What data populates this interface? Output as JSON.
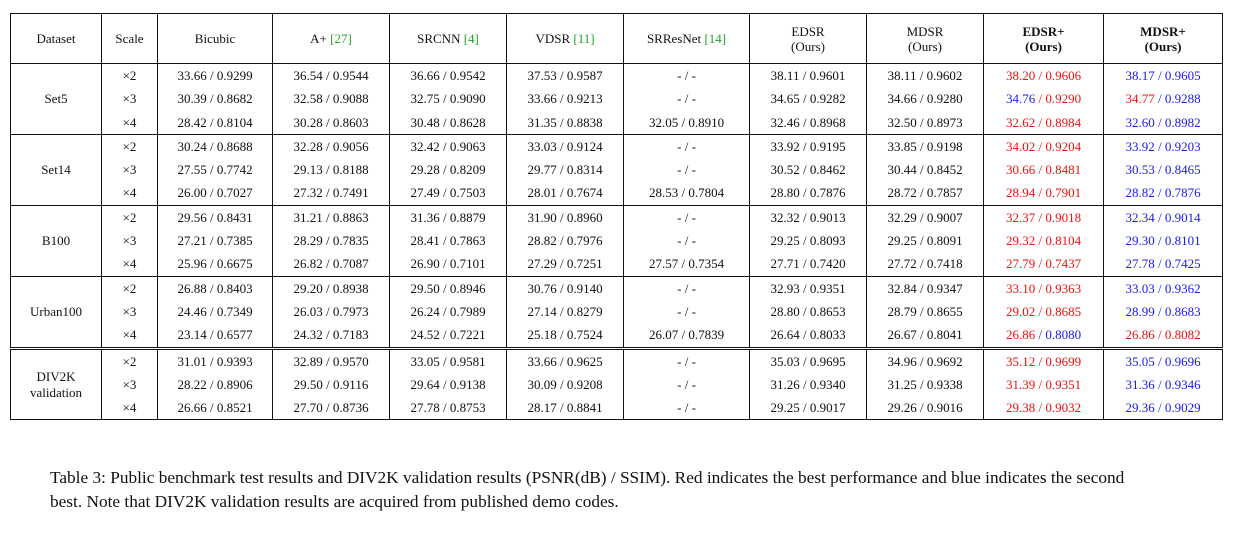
{
  "columns": [
    {
      "label": "Dataset",
      "cite": "",
      "sub": "",
      "bold": false
    },
    {
      "label": "Scale",
      "cite": "",
      "sub": "",
      "bold": false
    },
    {
      "label": "Bicubic",
      "cite": "",
      "sub": "",
      "bold": false
    },
    {
      "label": "A+ ",
      "cite": "[27]",
      "sub": "",
      "bold": false
    },
    {
      "label": "SRCNN ",
      "cite": "[4]",
      "sub": "",
      "bold": false
    },
    {
      "label": "VDSR ",
      "cite": "[11]",
      "sub": "",
      "bold": false
    },
    {
      "label": "SRResNet ",
      "cite": "[14]",
      "sub": "",
      "bold": false
    },
    {
      "label": "EDSR",
      "cite": "",
      "sub": "(Ours)",
      "bold": false
    },
    {
      "label": "MDSR",
      "cite": "",
      "sub": "(Ours)",
      "bold": false
    },
    {
      "label": "EDSR+",
      "cite": "",
      "sub": "(Ours)",
      "bold": true
    },
    {
      "label": "MDSR+",
      "cite": "",
      "sub": "(Ours)",
      "bold": true
    }
  ],
  "groups": [
    {
      "dataset": "Set5",
      "dataset_lines": [
        "Set5"
      ],
      "rows": [
        {
          "scale": "×2",
          "cells": [
            {
              "p": "33.66",
              "s": "0.9299"
            },
            {
              "p": "36.54",
              "s": "0.9544"
            },
            {
              "p": "36.66",
              "s": "0.9542"
            },
            {
              "p": "37.53",
              "s": "0.9587"
            },
            {
              "p": "-",
              "s": "-"
            },
            {
              "p": "38.11",
              "s": "0.9601"
            },
            {
              "p": "38.11",
              "s": "0.9602"
            },
            {
              "p": "38.20",
              "s": "0.9606",
              "pc": "red",
              "sc": "red"
            },
            {
              "p": "38.17",
              "s": "0.9605",
              "pc": "blue",
              "sc": "blue"
            }
          ]
        },
        {
          "scale": "×3",
          "cells": [
            {
              "p": "30.39",
              "s": "0.8682"
            },
            {
              "p": "32.58",
              "s": "0.9088"
            },
            {
              "p": "32.75",
              "s": "0.9090"
            },
            {
              "p": "33.66",
              "s": "0.9213"
            },
            {
              "p": "-",
              "s": "-"
            },
            {
              "p": "34.65",
              "s": "0.9282"
            },
            {
              "p": "34.66",
              "s": "0.9280"
            },
            {
              "p": "34.76",
              "s": "0.9290",
              "pc": "blue",
              "sc": "red"
            },
            {
              "p": "34.77",
              "s": "0.9288",
              "pc": "red",
              "sc": "blue"
            }
          ]
        },
        {
          "scale": "×4",
          "cells": [
            {
              "p": "28.42",
              "s": "0.8104"
            },
            {
              "p": "30.28",
              "s": "0.8603"
            },
            {
              "p": "30.48",
              "s": "0.8628"
            },
            {
              "p": "31.35",
              "s": "0.8838"
            },
            {
              "p": "32.05",
              "s": "0.8910"
            },
            {
              "p": "32.46",
              "s": "0.8968"
            },
            {
              "p": "32.50",
              "s": "0.8973"
            },
            {
              "p": "32.62",
              "s": "0.8984",
              "pc": "red",
              "sc": "red"
            },
            {
              "p": "32.60",
              "s": "0.8982",
              "pc": "blue",
              "sc": "blue"
            }
          ]
        }
      ]
    },
    {
      "dataset": "Set14",
      "dataset_lines": [
        "Set14"
      ],
      "rows": [
        {
          "scale": "×2",
          "cells": [
            {
              "p": "30.24",
              "s": "0.8688"
            },
            {
              "p": "32.28",
              "s": "0.9056"
            },
            {
              "p": "32.42",
              "s": "0.9063"
            },
            {
              "p": "33.03",
              "s": "0.9124"
            },
            {
              "p": "-",
              "s": "-"
            },
            {
              "p": "33.92",
              "s": "0.9195"
            },
            {
              "p": "33.85",
              "s": "0.9198"
            },
            {
              "p": "34.02",
              "s": "0.9204",
              "pc": "red",
              "sc": "red"
            },
            {
              "p": "33.92",
              "s": "0.9203",
              "pc": "blue",
              "sc": "blue"
            }
          ]
        },
        {
          "scale": "×3",
          "cells": [
            {
              "p": "27.55",
              "s": "0.7742"
            },
            {
              "p": "29.13",
              "s": "0.8188"
            },
            {
              "p": "29.28",
              "s": "0.8209"
            },
            {
              "p": "29.77",
              "s": "0.8314"
            },
            {
              "p": "-",
              "s": "-"
            },
            {
              "p": "30.52",
              "s": "0.8462"
            },
            {
              "p": "30.44",
              "s": "0.8452"
            },
            {
              "p": "30.66",
              "s": "0.8481",
              "pc": "red",
              "sc": "red"
            },
            {
              "p": "30.53",
              "s": "0.8465",
              "pc": "blue",
              "sc": "blue"
            }
          ]
        },
        {
          "scale": "×4",
          "cells": [
            {
              "p": "26.00",
              "s": "0.7027"
            },
            {
              "p": "27.32",
              "s": "0.7491"
            },
            {
              "p": "27.49",
              "s": "0.7503"
            },
            {
              "p": "28.01",
              "s": "0.7674"
            },
            {
              "p": "28.53",
              "s": "0.7804"
            },
            {
              "p": "28.80",
              "s": "0.7876"
            },
            {
              "p": "28.72",
              "s": "0.7857"
            },
            {
              "p": "28.94",
              "s": "0.7901",
              "pc": "red",
              "sc": "red"
            },
            {
              "p": "28.82",
              "s": "0.7876",
              "pc": "blue",
              "sc": "blue"
            }
          ]
        }
      ]
    },
    {
      "dataset": "B100",
      "dataset_lines": [
        "B100"
      ],
      "rows": [
        {
          "scale": "×2",
          "cells": [
            {
              "p": "29.56",
              "s": "0.8431"
            },
            {
              "p": "31.21",
              "s": "0.8863"
            },
            {
              "p": "31.36",
              "s": "0.8879"
            },
            {
              "p": "31.90",
              "s": "0.8960"
            },
            {
              "p": "-",
              "s": "-"
            },
            {
              "p": "32.32",
              "s": "0.9013"
            },
            {
              "p": "32.29",
              "s": "0.9007"
            },
            {
              "p": "32.37",
              "s": "0.9018",
              "pc": "red",
              "sc": "red"
            },
            {
              "p": "32.34",
              "s": "0.9014",
              "pc": "blue",
              "sc": "blue"
            }
          ]
        },
        {
          "scale": "×3",
          "cells": [
            {
              "p": "27.21",
              "s": "0.7385"
            },
            {
              "p": "28.29",
              "s": "0.7835"
            },
            {
              "p": "28.41",
              "s": "0.7863"
            },
            {
              "p": "28.82",
              "s": "0.7976"
            },
            {
              "p": "-",
              "s": "-"
            },
            {
              "p": "29.25",
              "s": "0.8093"
            },
            {
              "p": "29.25",
              "s": "0.8091"
            },
            {
              "p": "29.32",
              "s": "0.8104",
              "pc": "red",
              "sc": "red"
            },
            {
              "p": "29.30",
              "s": "0.8101",
              "pc": "blue",
              "sc": "blue"
            }
          ]
        },
        {
          "scale": "×4",
          "cells": [
            {
              "p": "25.96",
              "s": "0.6675"
            },
            {
              "p": "26.82",
              "s": "0.7087"
            },
            {
              "p": "26.90",
              "s": "0.7101"
            },
            {
              "p": "27.29",
              "s": "0.7251"
            },
            {
              "p": "27.57",
              "s": "0.7354"
            },
            {
              "p": "27.71",
              "s": "0.7420"
            },
            {
              "p": "27.72",
              "s": "0.7418"
            },
            {
              "p": "27.79",
              "s": "0.7437",
              "pc": "red",
              "sc": "red"
            },
            {
              "p": "27.78",
              "s": "0.7425",
              "pc": "blue",
              "sc": "blue"
            }
          ]
        }
      ]
    },
    {
      "dataset": "Urban100",
      "dataset_lines": [
        "Urban100"
      ],
      "rows": [
        {
          "scale": "×2",
          "cells": [
            {
              "p": "26.88",
              "s": "0.8403"
            },
            {
              "p": "29.20",
              "s": "0.8938"
            },
            {
              "p": "29.50",
              "s": "0.8946"
            },
            {
              "p": "30.76",
              "s": "0.9140"
            },
            {
              "p": "-",
              "s": "-"
            },
            {
              "p": "32.93",
              "s": "0.9351"
            },
            {
              "p": "32.84",
              "s": "0.9347"
            },
            {
              "p": "33.10",
              "s": "0.9363",
              "pc": "red",
              "sc": "red"
            },
            {
              "p": "33.03",
              "s": "0.9362",
              "pc": "blue",
              "sc": "blue"
            }
          ]
        },
        {
          "scale": "×3",
          "cells": [
            {
              "p": "24.46",
              "s": "0.7349"
            },
            {
              "p": "26.03",
              "s": "0.7973"
            },
            {
              "p": "26.24",
              "s": "0.7989"
            },
            {
              "p": "27.14",
              "s": "0.8279"
            },
            {
              "p": "-",
              "s": "-"
            },
            {
              "p": "28.80",
              "s": "0.8653"
            },
            {
              "p": "28.79",
              "s": "0.8655"
            },
            {
              "p": "29.02",
              "s": "0.8685",
              "pc": "red",
              "sc": "red"
            },
            {
              "p": "28.99",
              "s": "0.8683",
              "pc": "blue",
              "sc": "blue"
            }
          ]
        },
        {
          "scale": "×4",
          "cells": [
            {
              "p": "23.14",
              "s": "0.6577"
            },
            {
              "p": "24.32",
              "s": "0.7183"
            },
            {
              "p": "24.52",
              "s": "0.7221"
            },
            {
              "p": "25.18",
              "s": "0.7524"
            },
            {
              "p": "26.07",
              "s": "0.7839"
            },
            {
              "p": "26.64",
              "s": "0.8033"
            },
            {
              "p": "26.67",
              "s": "0.8041"
            },
            {
              "p": "26.86",
              "s": "0.8080",
              "pc": "red",
              "sc": "blue"
            },
            {
              "p": "26.86",
              "s": "0.8082",
              "pc": "red",
              "sc": "red"
            }
          ]
        }
      ]
    },
    {
      "dataset": "DIV2K validation",
      "dataset_lines": [
        "DIV2K",
        "validation"
      ],
      "sep": true,
      "rows": [
        {
          "scale": "×2",
          "cells": [
            {
              "p": "31.01",
              "s": "0.9393"
            },
            {
              "p": "32.89",
              "s": "0.9570"
            },
            {
              "p": "33.05",
              "s": "0.9581"
            },
            {
              "p": "33.66",
              "s": "0.9625"
            },
            {
              "p": "-",
              "s": "-"
            },
            {
              "p": "35.03",
              "s": "0.9695"
            },
            {
              "p": "34.96",
              "s": "0.9692"
            },
            {
              "p": "35.12",
              "s": "0.9699",
              "pc": "red",
              "sc": "red"
            },
            {
              "p": "35.05",
              "s": "0.9696",
              "pc": "blue",
              "sc": "blue"
            }
          ]
        },
        {
          "scale": "×3",
          "cells": [
            {
              "p": "28.22",
              "s": "0.8906"
            },
            {
              "p": "29.50",
              "s": "0.9116"
            },
            {
              "p": "29.64",
              "s": "0.9138"
            },
            {
              "p": "30.09",
              "s": "0.9208"
            },
            {
              "p": "-",
              "s": "-"
            },
            {
              "p": "31.26",
              "s": "0.9340"
            },
            {
              "p": "31.25",
              "s": "0.9338"
            },
            {
              "p": "31.39",
              "s": "0.9351",
              "pc": "red",
              "sc": "red"
            },
            {
              "p": "31.36",
              "s": "0.9346",
              "pc": "blue",
              "sc": "blue"
            }
          ]
        },
        {
          "scale": "×4",
          "cells": [
            {
              "p": "26.66",
              "s": "0.8521"
            },
            {
              "p": "27.70",
              "s": "0.8736"
            },
            {
              "p": "27.78",
              "s": "0.8753"
            },
            {
              "p": "28.17",
              "s": "0.8841"
            },
            {
              "p": "-",
              "s": "-"
            },
            {
              "p": "29.25",
              "s": "0.9017"
            },
            {
              "p": "29.26",
              "s": "0.9016"
            },
            {
              "p": "29.38",
              "s": "0.9032",
              "pc": "red",
              "sc": "red"
            },
            {
              "p": "29.36",
              "s": "0.9029",
              "pc": "blue",
              "sc": "blue"
            }
          ]
        }
      ]
    }
  ],
  "caption": "Table 3: Public benchmark test results and DIV2K validation results (PSNR(dB) / SSIM). Red indicates the best performance and blue indicates the second best. Note that DIV2K validation results are acquired from published demo codes.",
  "colors": {
    "best": "#ee1111",
    "second": "#1a1aee",
    "citation": "#27a327"
  }
}
